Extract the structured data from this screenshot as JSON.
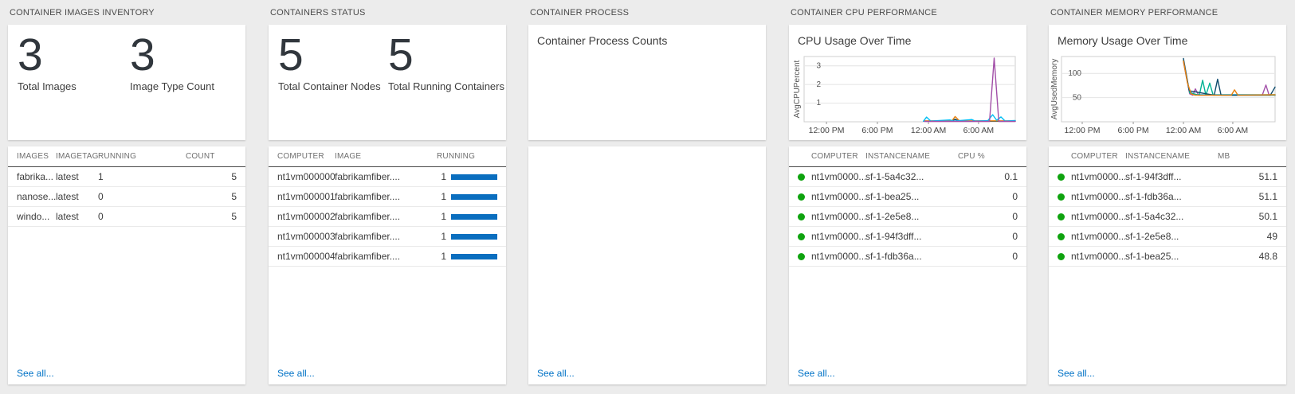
{
  "colors": {
    "background": "#ececec",
    "card": "#ffffff",
    "link_blue": "#0072c6",
    "bar_blue": "#0a6ebf",
    "status_green": "#0fa30f",
    "big_number": "#31373d"
  },
  "panels": [
    {
      "header": "CONTAINER IMAGES INVENTORY",
      "stats": [
        {
          "value": "3",
          "label": "Total Images"
        },
        {
          "value": "3",
          "label": "Image Type Count"
        }
      ],
      "table": {
        "columns": [
          "IMAGES",
          "IMAGETAG",
          "RUNNING",
          "COUNT"
        ],
        "rows": [
          [
            "fabrika...",
            "latest",
            "1",
            "5"
          ],
          [
            "nanose...",
            "latest",
            "0",
            "5"
          ],
          [
            "windo...",
            "latest",
            "0",
            "5"
          ]
        ]
      },
      "see_all": "See all..."
    },
    {
      "header": "CONTAINERS STATUS",
      "stats": [
        {
          "value": "5",
          "label": "Total Container Nodes"
        },
        {
          "value": "5",
          "label": "Total Running Containers"
        }
      ],
      "table": {
        "columns": [
          "COMPUTER",
          "IMAGE",
          "RUNNING"
        ],
        "rows": [
          [
            "nt1vm000000",
            "fabrikamfiber....",
            "1"
          ],
          [
            "nt1vm000001",
            "fabrikamfiber....",
            "1"
          ],
          [
            "nt1vm000002",
            "fabrikamfiber....",
            "1"
          ],
          [
            "nt1vm000003",
            "fabrikamfiber....",
            "1"
          ],
          [
            "nt1vm000004",
            "fabrikamfiber....",
            "1"
          ]
        ]
      },
      "see_all": "See all..."
    },
    {
      "header": "CONTAINER PROCESS",
      "see_all": "See all..."
    },
    {
      "header": "CONTAINER CPU PERFORMANCE",
      "table": {
        "columns": [
          "COMPUTER",
          "INSTANCENAME",
          "CPU %"
        ],
        "rows": [
          [
            "nt1vm0000...",
            "sf-1-5a4c32...",
            "0.1"
          ],
          [
            "nt1vm0000...",
            "sf-1-bea25...",
            "0"
          ],
          [
            "nt1vm0000...",
            "sf-1-2e5e8...",
            "0"
          ],
          [
            "nt1vm0000...",
            "sf-1-94f3dff...",
            "0"
          ],
          [
            "nt1vm0000...",
            "sf-1-fdb36a...",
            "0"
          ]
        ]
      },
      "see_all": "See all..."
    },
    {
      "header": "CONTAINER MEMORY PERFORMANCE",
      "table": {
        "columns": [
          "COMPUTER",
          "INSTANCENAME",
          "MB"
        ],
        "rows": [
          [
            "nt1vm0000...",
            "sf-1-94f3dff...",
            "51.1"
          ],
          [
            "nt1vm0000...",
            "sf-1-fdb36a...",
            "51.1"
          ],
          [
            "nt1vm0000...",
            "sf-1-5a4c32...",
            "50.1"
          ],
          [
            "nt1vm0000...",
            "sf-1-2e5e8...",
            "49"
          ],
          [
            "nt1vm0000...",
            "sf-1-bea25...",
            "48.8"
          ]
        ]
      },
      "see_all": "See all..."
    }
  ],
  "chart_data": [
    {
      "type": "line",
      "title": "CPU Usage Over Time",
      "ylabel": "AvgCPUPercent",
      "ylim": [
        0,
        3.5
      ],
      "yticks": [
        1,
        2,
        3
      ],
      "grid": true,
      "legend": "none",
      "x_unit": "fraction of visible time axis; data begins near 12:00 AM",
      "x_ticks": [
        {
          "label": "12:00 PM",
          "pos": 0.106
        },
        {
          "label": "6:00 PM",
          "pos": 0.347
        },
        {
          "label": "12:00 AM",
          "pos": 0.589
        },
        {
          "label": "6:00 AM",
          "pos": 0.826
        }
      ],
      "series": [
        {
          "name": "navy",
          "color": "#0f4c6e",
          "points": [
            [
              0.57,
              0.03
            ],
            [
              0.7,
              0.03
            ],
            [
              0.715,
              0.14
            ],
            [
              0.735,
              0.03
            ],
            [
              1,
              0.03
            ]
          ]
        },
        {
          "name": "orange",
          "color": "#e8820e",
          "points": [
            [
              0.57,
              0.05
            ],
            [
              0.7,
              0.05
            ],
            [
              0.715,
              0.28
            ],
            [
              0.735,
              0.05
            ],
            [
              1,
              0.05
            ]
          ]
        },
        {
          "name": "cyan",
          "color": "#00bcf2",
          "points": [
            [
              0.565,
              0.03
            ],
            [
              0.58,
              0.25
            ],
            [
              0.6,
              0.04
            ],
            [
              0.69,
              0.1
            ],
            [
              0.71,
              0.04
            ],
            [
              0.795,
              0.12
            ],
            [
              0.81,
              0.04
            ],
            [
              0.87,
              0.06
            ],
            [
              0.893,
              0.38
            ],
            [
              0.912,
              0.08
            ],
            [
              0.932,
              0.26
            ],
            [
              0.952,
              0.04
            ],
            [
              1,
              0.07
            ]
          ]
        },
        {
          "name": "purple",
          "color": "#a24fa8",
          "points": [
            [
              0.57,
              0.02
            ],
            [
              0.878,
              0.02
            ],
            [
              0.9,
              3.42
            ],
            [
              0.922,
              0.02
            ],
            [
              1,
              0.02
            ]
          ]
        }
      ]
    },
    {
      "type": "line",
      "title": "Memory Usage Over Time",
      "ylabel": "AvgUsedMemory",
      "ylim": [
        0,
        135
      ],
      "yticks": [
        50,
        100
      ],
      "grid": true,
      "legend": "none",
      "x_unit": "fraction of visible time axis; data begins near 12:00 AM at ~130 MB dropping to ~55 MB",
      "x_ticks": [
        {
          "label": "12:00 PM",
          "pos": 0.097
        },
        {
          "label": "6:00 PM",
          "pos": 0.336
        },
        {
          "label": "12:00 AM",
          "pos": 0.571
        },
        {
          "label": "6:00 AM",
          "pos": 0.802
        }
      ],
      "series": [
        {
          "name": "cyan",
          "color": "#00bcf2",
          "points": [
            [
              0.571,
              128
            ],
            [
              0.585,
              92
            ],
            [
              0.6,
              62
            ],
            [
              0.625,
              56
            ],
            [
              1,
              56
            ]
          ]
        },
        {
          "name": "purple",
          "color": "#a24fa8",
          "points": [
            [
              0.571,
              124
            ],
            [
              0.6,
              58
            ],
            [
              0.615,
              55
            ],
            [
              0.627,
              68
            ],
            [
              0.642,
              55
            ],
            [
              0.94,
              55
            ],
            [
              0.957,
              76
            ],
            [
              0.972,
              55
            ],
            [
              1,
              55
            ]
          ]
        },
        {
          "name": "teal",
          "color": "#00b294",
          "points": [
            [
              0.571,
              127
            ],
            [
              0.6,
              60
            ],
            [
              0.645,
              55
            ],
            [
              0.661,
              86
            ],
            [
              0.676,
              55
            ],
            [
              0.694,
              80
            ],
            [
              0.71,
              55
            ],
            [
              1,
              55
            ]
          ]
        },
        {
          "name": "navy",
          "color": "#0f4c6e",
          "points": [
            [
              0.571,
              131
            ],
            [
              0.598,
              64
            ],
            [
              0.715,
              55
            ],
            [
              0.731,
              88
            ],
            [
              0.747,
              55
            ],
            [
              0.978,
              55
            ],
            [
              1,
              72
            ]
          ]
        },
        {
          "name": "orange",
          "color": "#e8820e",
          "points": [
            [
              0.571,
              126
            ],
            [
              0.59,
              80
            ],
            [
              0.607,
              58
            ],
            [
              0.625,
              55
            ],
            [
              0.795,
              55
            ],
            [
              0.81,
              66
            ],
            [
              0.826,
              55
            ],
            [
              1,
              56
            ]
          ]
        }
      ]
    },
    {
      "type": "line",
      "title": "Container Process Counts",
      "empty": true,
      "series": []
    }
  ]
}
